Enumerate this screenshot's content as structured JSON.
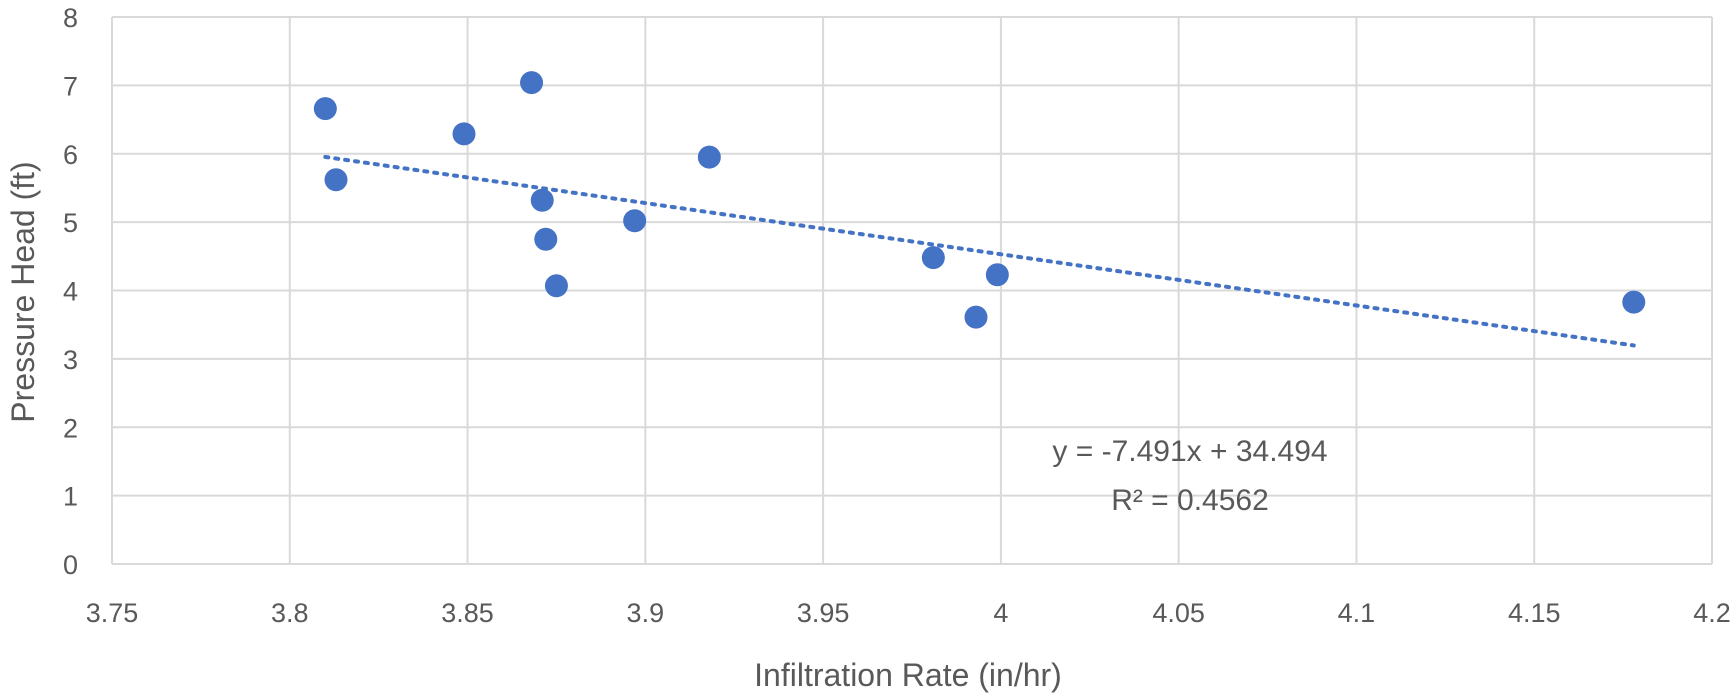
{
  "chart_data": {
    "type": "scatter",
    "title": "",
    "xlabel": "Infiltration Rate (in/hr)",
    "ylabel": "Pressure Head (ft)",
    "xlim": [
      3.75,
      4.2
    ],
    "ylim": [
      0,
      8
    ],
    "x_ticks": [
      3.75,
      3.8,
      3.85,
      3.9,
      3.95,
      4.0,
      4.05,
      4.1,
      4.15,
      4.2
    ],
    "x_tick_labels": [
      "3.75",
      "3.8",
      "3.85",
      "3.9",
      "3.95",
      "4",
      "4.05",
      "4.1",
      "4.15",
      "4.2"
    ],
    "y_ticks": [
      0,
      1,
      2,
      3,
      4,
      5,
      6,
      7,
      8
    ],
    "y_tick_labels": [
      "0",
      "1",
      "2",
      "3",
      "4",
      "5",
      "6",
      "7",
      "8"
    ],
    "grid": true,
    "legend": "none",
    "series": [
      {
        "marker_color": "#4472C4",
        "points": [
          {
            "x": 3.81,
            "y": 6.66
          },
          {
            "x": 3.813,
            "y": 5.62
          },
          {
            "x": 3.849,
            "y": 6.29
          },
          {
            "x": 3.868,
            "y": 7.04
          },
          {
            "x": 3.871,
            "y": 5.32
          },
          {
            "x": 3.872,
            "y": 4.75
          },
          {
            "x": 3.875,
            "y": 4.07
          },
          {
            "x": 3.897,
            "y": 5.02
          },
          {
            "x": 3.918,
            "y": 5.95
          },
          {
            "x": 3.981,
            "y": 4.48
          },
          {
            "x": 3.993,
            "y": 3.61
          },
          {
            "x": 3.999,
            "y": 4.23
          },
          {
            "x": 4.178,
            "y": 3.83
          }
        ]
      }
    ],
    "trendline": {
      "type": "linear",
      "style": "dotted",
      "color": "#4472C4",
      "slope": -7.491,
      "intercept": 34.494,
      "x_range": [
        3.81,
        4.178
      ],
      "equation_label": "y = -7.491x + 34.494",
      "r2_label": "R² = 0.4562"
    },
    "colors": {
      "gridline": "#d9d9d9",
      "text": "#595959"
    }
  }
}
